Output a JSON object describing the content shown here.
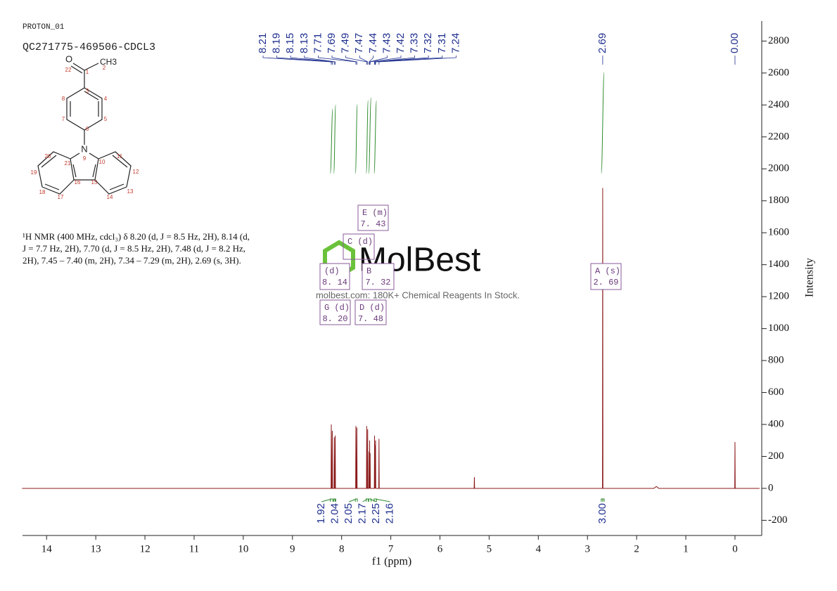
{
  "header": {
    "experiment": "PROTON_01",
    "sample": "QC271775-469506-CDCL3"
  },
  "structure": {
    "atoms": [
      "O",
      "CH3",
      "N"
    ],
    "numbers": [
      "22",
      "1",
      "2",
      "3",
      "4",
      "5",
      "6",
      "7",
      "8",
      "9",
      "10",
      "11",
      "12",
      "13",
      "14",
      "15",
      "16",
      "17",
      "18",
      "19",
      "20",
      "21"
    ]
  },
  "description": "¹H NMR (400 MHz, cdcl₃) δ 8.20 (d, J = 8.5 Hz, 2H), 8.14 (d, J = 7.7 Hz, 2H), 7.70 (d, J = 8.5 Hz, 2H), 7.48 (d, J = 8.2 Hz, 2H), 7.45 – 7.40 (m, 2H), 7.34 – 7.29 (m, 2H), 2.69 (s, 3H).",
  "watermark": {
    "brand": "MolBest",
    "tagline": "molbest.com: 180K+ Chemical Reagents In Stock."
  },
  "chart_data": {
    "type": "line",
    "x_label": "f1 (ppm)",
    "y_label": "Intensity",
    "xlim": [
      14.49,
      -0.53
    ],
    "xticks": [
      14,
      13,
      12,
      11,
      10,
      9,
      8,
      7,
      6,
      5,
      4,
      3,
      2,
      1,
      0
    ],
    "ylim": [
      -295,
      2925
    ],
    "yticks": [
      -200,
      0,
      200,
      400,
      600,
      800,
      1000,
      1200,
      1400,
      1600,
      1800,
      2000,
      2200,
      2400,
      2600,
      2800
    ],
    "x": [
      14.5,
      8.215,
      8.21,
      8.205,
      8.195,
      8.19,
      8.185,
      8.155,
      8.15,
      8.145,
      8.135,
      8.13,
      8.125,
      7.715,
      7.71,
      7.705,
      7.695,
      7.69,
      7.685,
      7.495,
      7.49,
      7.485,
      7.475,
      7.47,
      7.465,
      7.445,
      7.44,
      7.435,
      7.43,
      7.425,
      7.42,
      7.415,
      7.335,
      7.33,
      7.325,
      7.32,
      7.315,
      7.31,
      7.305,
      7.245,
      7.24,
      7.235,
      5.305,
      5.3,
      5.295,
      2.695,
      2.69,
      2.685,
      1.65,
      1.6,
      1.55,
      0.005,
      0,
      -0.005,
      -0.5
    ],
    "series": [
      {
        "color": "#8b1a1a",
        "values": [
          0,
          0,
          400,
          0,
          0,
          360,
          0,
          0,
          320,
          0,
          0,
          330,
          0,
          0,
          390,
          0,
          0,
          380,
          0,
          0,
          390,
          0,
          0,
          370,
          0,
          0,
          230,
          0,
          300,
          0,
          220,
          0,
          0,
          330,
          0,
          270,
          0,
          300,
          0,
          0,
          310,
          0,
          0,
          70,
          0,
          0,
          1880,
          0,
          0,
          12,
          0,
          0,
          290,
          0,
          0
        ]
      }
    ],
    "peak_labels": [
      8.21,
      8.19,
      8.15,
      8.13,
      7.71,
      7.69,
      7.49,
      7.47,
      7.44,
      7.43,
      7.42,
      7.33,
      7.32,
      7.31,
      7.24,
      2.69,
      {
        "value": 0,
        "label": "0.00"
      }
    ],
    "integrals": {
      "ranges": [
        [
          8.23,
          8.18
        ],
        [
          8.16,
          8.12
        ],
        [
          7.72,
          7.68
        ],
        [
          7.5,
          7.46
        ],
        [
          7.45,
          7.4
        ],
        [
          7.34,
          7.29
        ],
        [
          2.72,
          2.66
        ]
      ],
      "values": [
        1.92,
        2.04,
        2.05,
        2.17,
        2.25,
        2.16,
        {
          "value": 3,
          "label": "3.00"
        }
      ],
      "color": "#2e8b2e"
    },
    "multiplets": [
      {
        "name": "E (m)",
        "shift": "7. 43"
      },
      {
        "name": "C (d)"
      },
      {
        "name": "(d)",
        "shift": "8. 14"
      },
      {
        "name": "B",
        "shift": "7. 32"
      },
      {
        "name": "G (d)",
        "shift": "8. 20"
      },
      {
        "name": "D (d)",
        "shift": "7. 48"
      },
      {
        "name": "A (s)",
        "shift": "2. 69"
      }
    ]
  }
}
